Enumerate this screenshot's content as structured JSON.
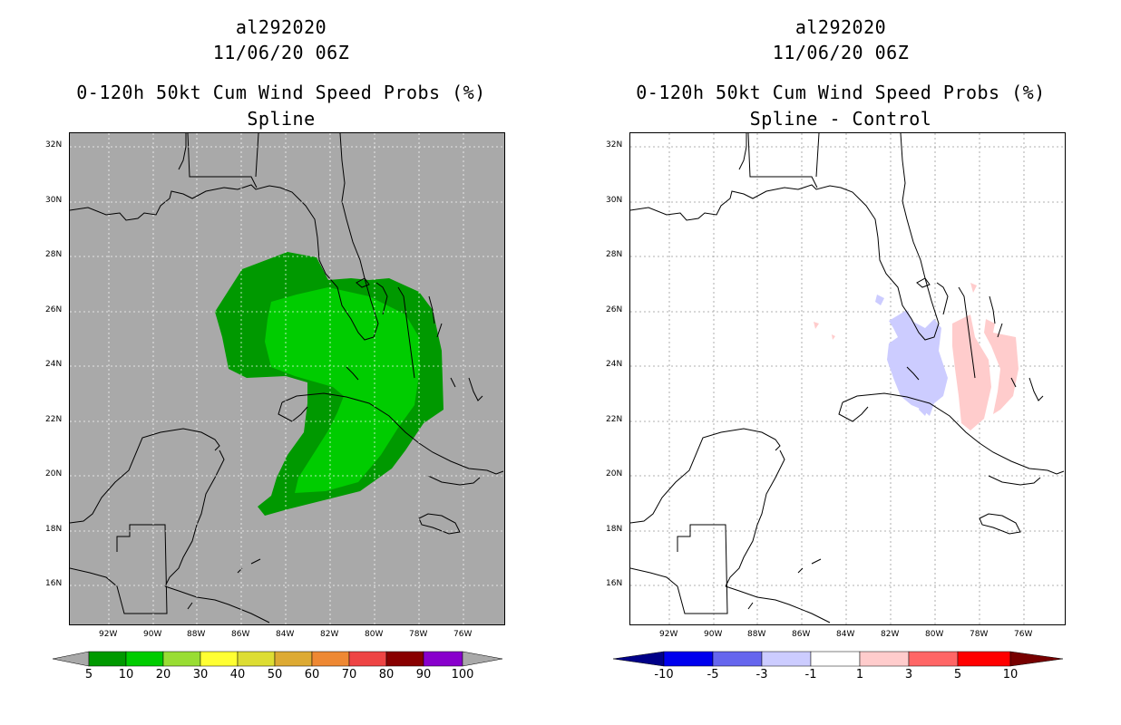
{
  "left": {
    "storm_id": "al292020",
    "datetime": "11/06/20 06Z",
    "product": "0-120h 50kt Cum Wind Speed Probs (%)",
    "subtitle": "Spline",
    "background": "#a9a9a9",
    "colorbar": {
      "labels": [
        "5",
        "10",
        "20",
        "30",
        "40",
        "50",
        "60",
        "70",
        "80",
        "90",
        "100"
      ],
      "colors": [
        "#009900",
        "#00cc00",
        "#99dd33",
        "#ffff33",
        "#dddd33",
        "#ddaa33",
        "#ee8833",
        "#ee4444",
        "#880000",
        "#8800cc"
      ],
      "end_color": "#a9a9a9"
    }
  },
  "right": {
    "storm_id": "al292020",
    "datetime": "11/06/20 06Z",
    "product": "0-120h 50kt Cum Wind Speed Probs (%)",
    "subtitle": "Spline - Control",
    "background": "#ffffff",
    "colorbar": {
      "labels": [
        "-10",
        "-5",
        "-3",
        "-1",
        "1",
        "3",
        "5",
        "10"
      ],
      "colors": [
        "#0000cc",
        "#0000ee",
        "#6666ee",
        "#ccccff",
        "#ffffff",
        "#ffcccc",
        "#ff6666",
        "#ff0000",
        "#770000"
      ],
      "low_end": "#000088",
      "high_end": "#770000"
    }
  },
  "axes": {
    "lat_labels": [
      "32N",
      "30N",
      "28N",
      "26N",
      "24N",
      "22N",
      "20N",
      "18N",
      "16N"
    ],
    "lon_labels": [
      "92W",
      "90W",
      "88W",
      "86W",
      "84W",
      "82W",
      "80W",
      "78W",
      "76W"
    ]
  },
  "colors": {
    "prob_10": "#009900",
    "prob_20": "#00cc00",
    "diff_neg": "#ccccff",
    "diff_pos": "#ffcccc"
  }
}
